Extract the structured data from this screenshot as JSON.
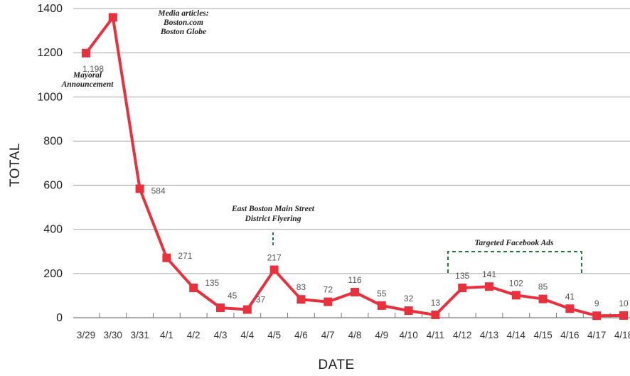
{
  "chart_data": {
    "type": "line",
    "xlabel": "DATE",
    "ylabel": "TOTAL",
    "ylim": [
      0,
      1400
    ],
    "yticks": [
      "0",
      "200",
      "400",
      "600",
      "800",
      "1000",
      "1200",
      "1400"
    ],
    "grid": "horizontal",
    "categories": [
      "3/29",
      "3/30",
      "3/31",
      "4/1",
      "4/2",
      "4/3",
      "4/4",
      "4/5",
      "4/6",
      "4/7",
      "4/8",
      "4/9",
      "4/10",
      "4/11",
      "4/12",
      "4/13",
      "4/14",
      "4/15",
      "4/16",
      "4/17",
      "4/18"
    ],
    "values": [
      1198,
      1360,
      584,
      271,
      135,
      45,
      37,
      217,
      83,
      72,
      116,
      55,
      32,
      13,
      135,
      141,
      102,
      85,
      41,
      9,
      10
    ],
    "data_labels": [
      "1,198",
      "",
      "584",
      "271",
      "135",
      "45",
      "37",
      "217",
      "83",
      "72",
      "116",
      "55",
      "32",
      "13",
      "135",
      "141",
      "102",
      "85",
      "41",
      "9",
      "10"
    ],
    "line_color": "#e8313c",
    "annotation_color": "#1a7a3a",
    "annotations": [
      {
        "lines": [
          "Media articles:",
          "Boston.com",
          "Boston Globe"
        ]
      },
      {
        "lines": [
          "Mayoral",
          "Announcement"
        ]
      },
      {
        "lines": [
          "East Boston Main Street",
          "District Flyering"
        ]
      },
      {
        "lines": [
          "Targeted Facebook Ads"
        ]
      }
    ]
  }
}
